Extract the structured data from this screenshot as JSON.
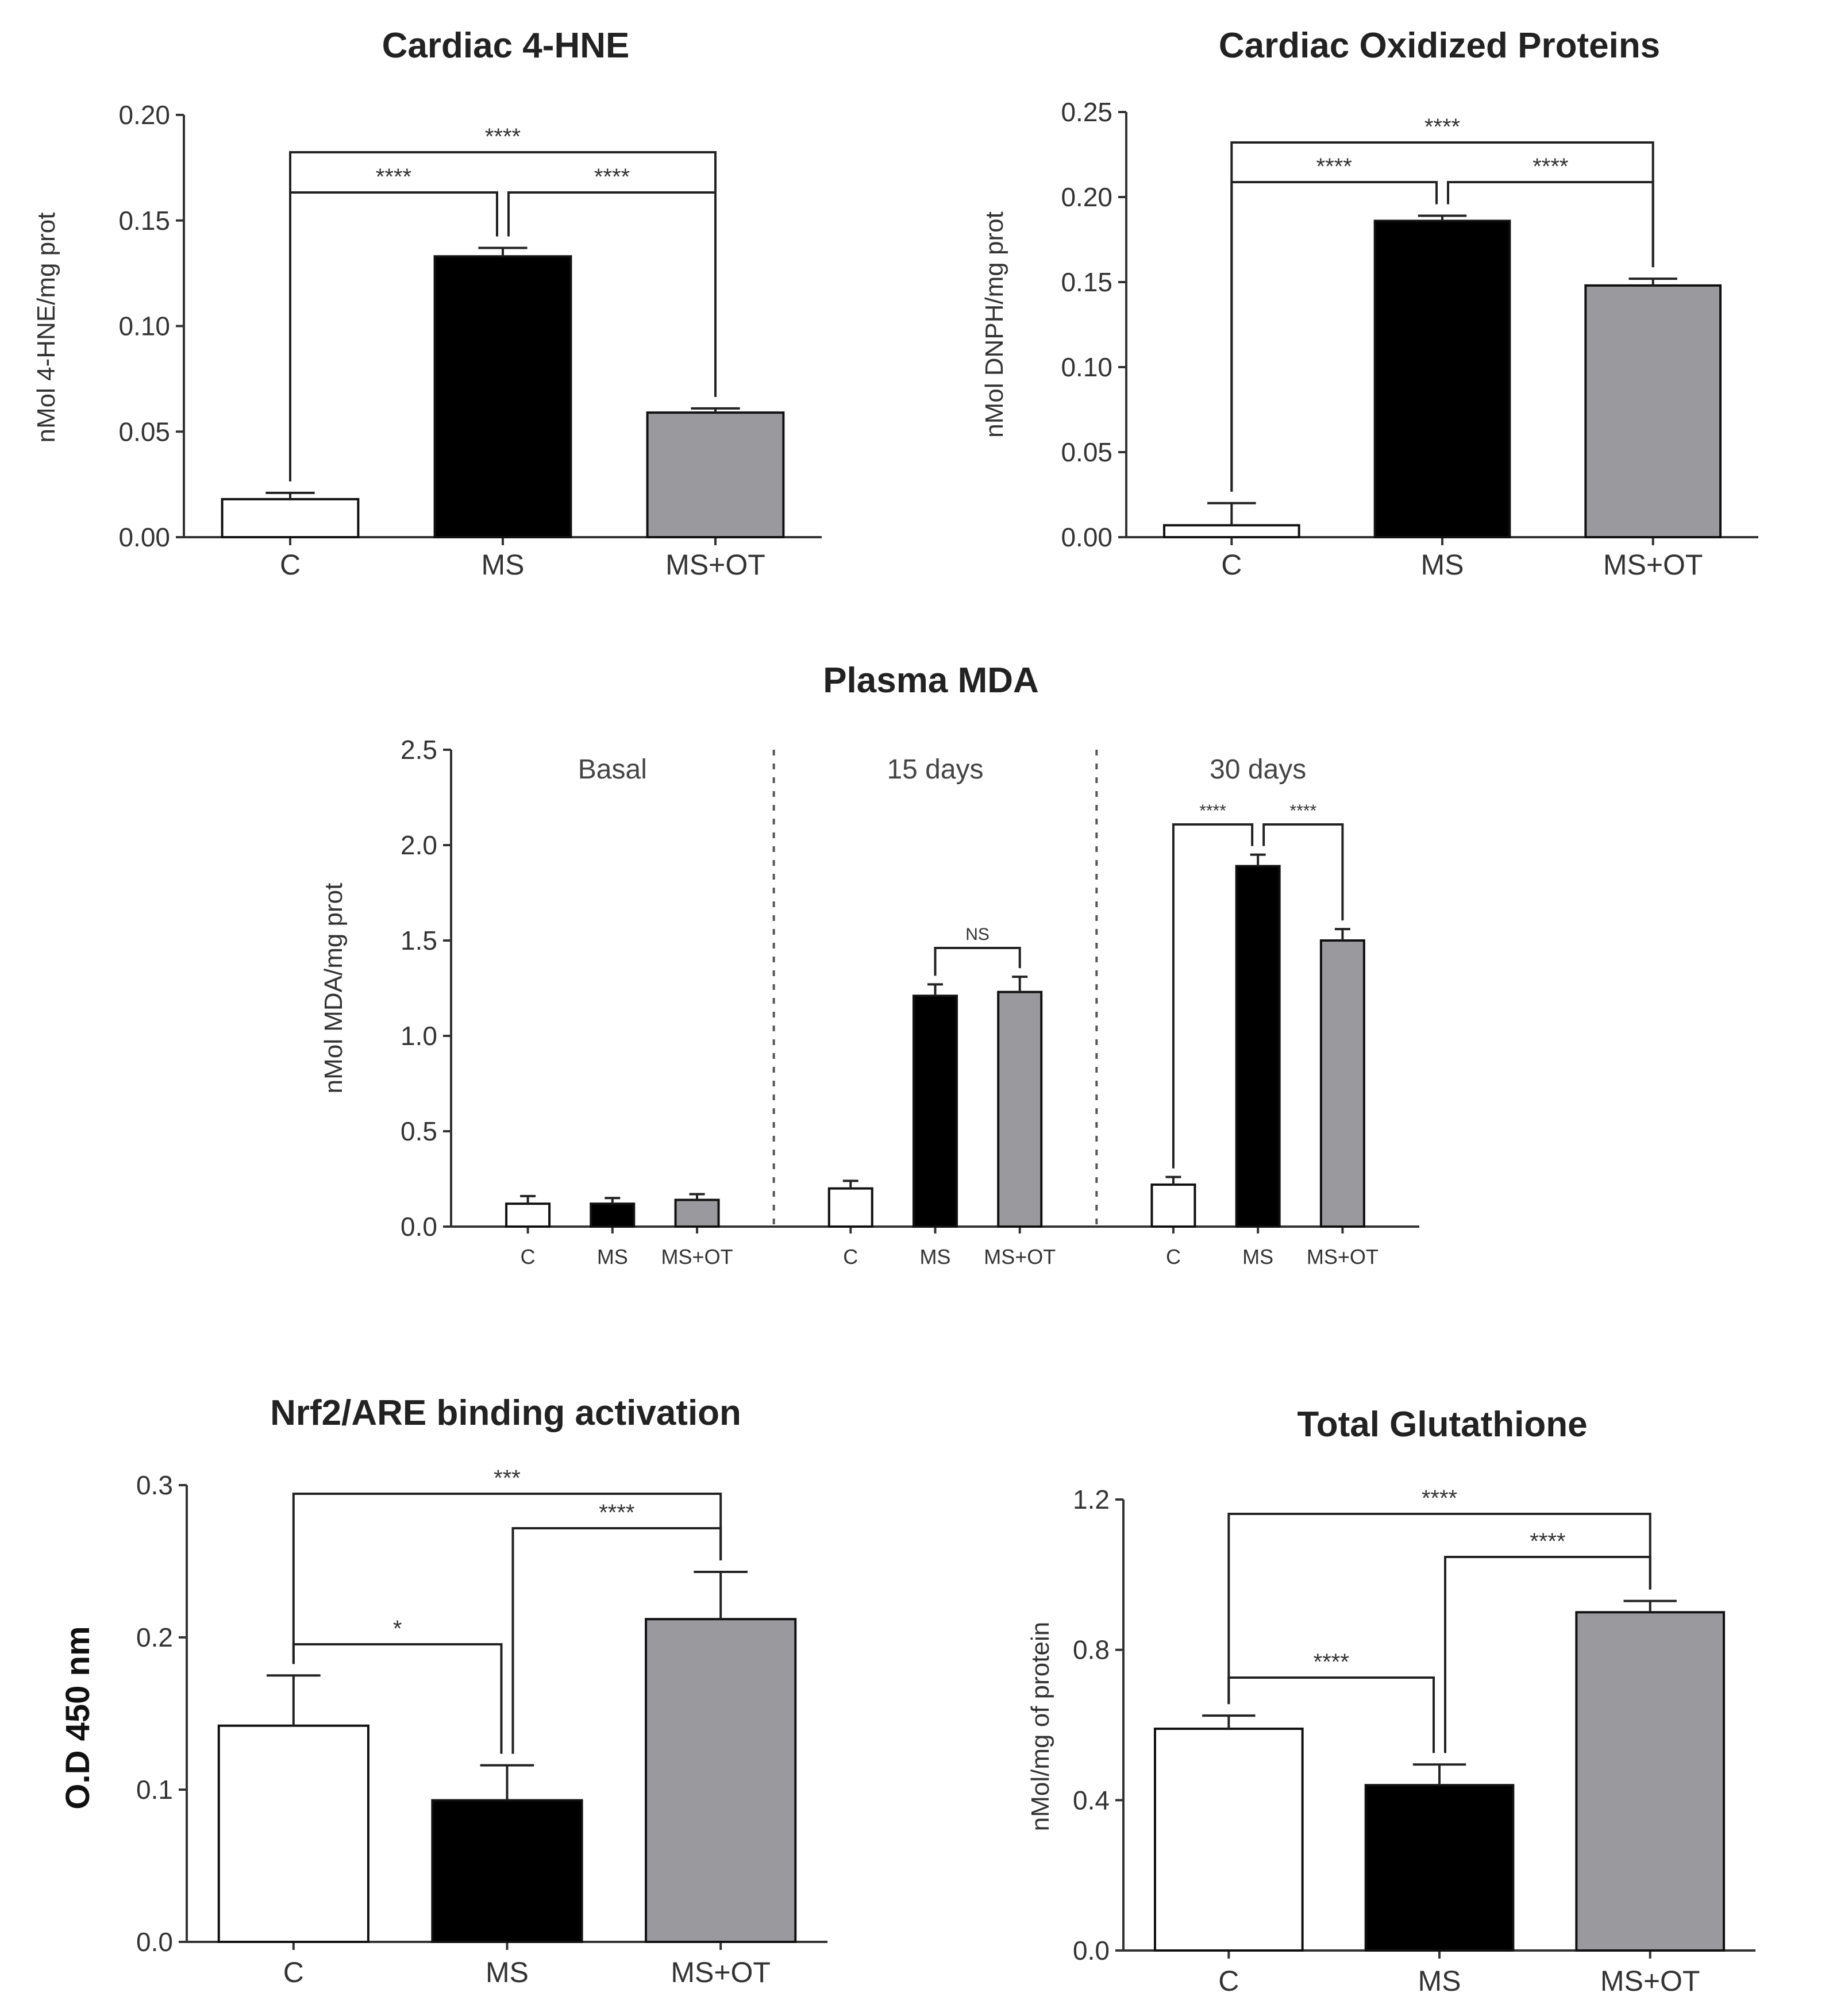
{
  "colors": {
    "C": "#ffffff",
    "MS": "#000000",
    "MS+OT": "#9a9a9e",
    "axis": "#333333"
  },
  "chart_data": [
    {
      "id": "cardiac-4hne",
      "type": "bar",
      "title": "Cardiac 4-HNE",
      "ylabel": "nMol 4-HNE/mg prot",
      "xlabel": "",
      "categories": [
        "C",
        "MS",
        "MS+OT"
      ],
      "values": [
        0.018,
        0.133,
        0.059
      ],
      "errors": [
        0.003,
        0.004,
        0.002
      ],
      "ylim": [
        0,
        0.2
      ],
      "yticks": [
        "0.00",
        "0.05",
        "0.10",
        "0.15",
        "0.20"
      ],
      "comparisons": [
        {
          "from": 0,
          "to": 1,
          "label": "****"
        },
        {
          "from": 1,
          "to": 2,
          "label": "****"
        },
        {
          "from": 0,
          "to": 2,
          "label": "****"
        }
      ]
    },
    {
      "id": "cardiac-oxidized-proteins",
      "type": "bar",
      "title": "Cardiac Oxidized Proteins",
      "ylabel": "nMol DNPH/mg prot",
      "xlabel": "",
      "categories": [
        "C",
        "MS",
        "MS+OT"
      ],
      "values": [
        0.007,
        0.186,
        0.148
      ],
      "errors": [
        0.013,
        0.003,
        0.004
      ],
      "ylim": [
        0,
        0.25
      ],
      "yticks": [
        "0.00",
        "0.05",
        "0.10",
        "0.15",
        "0.20",
        "0.25"
      ],
      "comparisons": [
        {
          "from": 0,
          "to": 1,
          "label": "****"
        },
        {
          "from": 1,
          "to": 2,
          "label": "****"
        },
        {
          "from": 0,
          "to": 2,
          "label": "****"
        }
      ]
    },
    {
      "id": "plasma-mda",
      "type": "bar",
      "title": "Plasma MDA",
      "ylabel": "nMol MDA/mg prot",
      "xlabel": "",
      "groups": [
        "Basal",
        "15 days",
        "30 days"
      ],
      "categories": [
        "C",
        "MS",
        "MS+OT"
      ],
      "series": [
        {
          "name": "C",
          "values": [
            0.12,
            0.2,
            0.22
          ],
          "errors": [
            0.04,
            0.04,
            0.04
          ]
        },
        {
          "name": "MS",
          "values": [
            0.12,
            1.21,
            1.89
          ],
          "errors": [
            0.03,
            0.06,
            0.06
          ]
        },
        {
          "name": "MS+OT",
          "values": [
            0.14,
            1.23,
            1.5
          ],
          "errors": [
            0.03,
            0.08,
            0.06
          ]
        }
      ],
      "ylim": [
        0,
        2.5
      ],
      "yticks": [
        "0.0",
        "0.5",
        "1.0",
        "1.5",
        "2.0",
        "2.5"
      ],
      "comparisons": [
        {
          "group": 1,
          "from": 1,
          "to": 2,
          "label": "NS"
        },
        {
          "group": 2,
          "from": 0,
          "to": 1,
          "label": "****"
        },
        {
          "group": 2,
          "from": 1,
          "to": 2,
          "label": "****"
        }
      ]
    },
    {
      "id": "nrf2-are",
      "type": "bar",
      "title": "Nrf2/ARE binding activation",
      "ylabel": "O.D 450 nm",
      "xlabel": "",
      "categories": [
        "C",
        "MS",
        "MS+OT"
      ],
      "values": [
        0.142,
        0.093,
        0.212
      ],
      "errors": [
        0.033,
        0.023,
        0.031
      ],
      "ylim": [
        0,
        0.3
      ],
      "yticks": [
        "0.0",
        "0.1",
        "0.2",
        "0.3"
      ],
      "comparisons": [
        {
          "from": 0,
          "to": 1,
          "label": "*"
        },
        {
          "from": 1,
          "to": 2,
          "label": "****"
        },
        {
          "from": 0,
          "to": 2,
          "label": "***"
        }
      ]
    },
    {
      "id": "total-glutathione",
      "type": "bar",
      "title": "Total Glutathione",
      "ylabel": "nMol/mg of protein",
      "xlabel": "",
      "categories": [
        "C",
        "MS",
        "MS+OT"
      ],
      "values": [
        0.59,
        0.44,
        0.9
      ],
      "errors": [
        0.035,
        0.055,
        0.03
      ],
      "ylim": [
        0,
        1.2
      ],
      "yticks": [
        "0.0",
        "0.4",
        "0.8",
        "1.2"
      ],
      "comparisons": [
        {
          "from": 0,
          "to": 1,
          "label": "****"
        },
        {
          "from": 1,
          "to": 2,
          "label": "****"
        },
        {
          "from": 0,
          "to": 2,
          "label": "****"
        }
      ]
    }
  ]
}
